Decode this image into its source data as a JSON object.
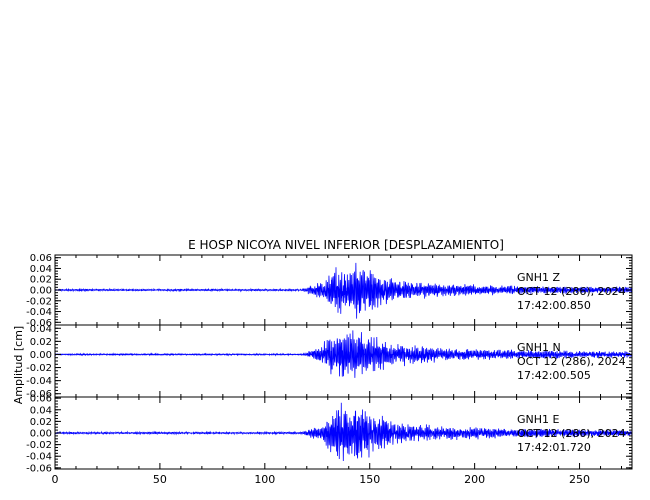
{
  "chart_data": {
    "type": "line",
    "title": "E HOSP NICOYA NIVEL INFERIOR [DESPLAZAMIENTO]",
    "ylabel": "Amplitud  [cm]",
    "xlabel": "",
    "xlim": [
      0,
      275
    ],
    "x_ticks": [
      0,
      50,
      100,
      150,
      200,
      250
    ],
    "colors": {
      "trace": "#0000ff",
      "axis": "#000000"
    },
    "panels": [
      {
        "name": "GNH1 Z",
        "station": "GNH1",
        "component": "Z",
        "date": "OCT 12 (286), 2024",
        "time": "17:42:00.850",
        "ylim": [
          -0.065,
          0.065
        ],
        "y_ticks": [
          0.06,
          0.04,
          0.02,
          0.0,
          -0.02,
          -0.04,
          -0.06
        ],
        "y_tick_labels": [
          "0.06",
          "0.04",
          "0.02",
          "0.00",
          "-0.02",
          "-0.04",
          "-0.06"
        ],
        "envelope": [
          [
            0,
            0.0015
          ],
          [
            118,
            0.0015
          ],
          [
            121,
            0.008
          ],
          [
            127,
            0.015
          ],
          [
            131,
            0.03
          ],
          [
            136,
            0.05
          ],
          [
            140,
            0.04
          ],
          [
            145,
            0.058
          ],
          [
            150,
            0.038
          ],
          [
            155,
            0.028
          ],
          [
            160,
            0.02
          ],
          [
            170,
            0.015
          ],
          [
            185,
            0.012
          ],
          [
            200,
            0.009
          ],
          [
            220,
            0.007
          ],
          [
            275,
            0.005
          ]
        ]
      },
      {
        "name": "GNH1 N",
        "station": "GNH1",
        "component": "N",
        "date": "OCT 12 (286), 2024",
        "time": "17:42:00.505",
        "ylim": [
          -0.065,
          0.045
        ],
        "y_ticks": [
          0.04,
          0.02,
          0.0,
          -0.02,
          -0.04,
          -0.06
        ],
        "y_tick_labels": [
          "0.04",
          "0.02",
          "0.00",
          "-0.02",
          "-0.04",
          "-0.06"
        ],
        "envelope": [
          [
            0,
            0.001
          ],
          [
            118,
            0.001
          ],
          [
            121,
            0.005
          ],
          [
            127,
            0.012
          ],
          [
            131,
            0.028
          ],
          [
            134,
            0.04
          ],
          [
            138,
            0.035
          ],
          [
            142,
            0.03
          ],
          [
            148,
            0.032
          ],
          [
            155,
            0.022
          ],
          [
            165,
            0.016
          ],
          [
            185,
            0.01
          ],
          [
            205,
            0.007
          ],
          [
            275,
            0.004
          ]
        ]
      },
      {
        "name": "GNH1 E",
        "station": "GNH1",
        "component": "E",
        "date": "OCT 12 (286), 2024",
        "time": "17:42:01.720",
        "ylim": [
          -0.062,
          0.062
        ],
        "y_ticks": [
          0.06,
          0.04,
          0.02,
          0.0,
          -0.02,
          -0.04,
          -0.06
        ],
        "y_tick_labels": [
          "0.06",
          "0.04",
          "0.02",
          "0.00",
          "-0.02",
          "-0.04",
          "-0.06"
        ],
        "envelope": [
          [
            0,
            0.0015
          ],
          [
            118,
            0.0015
          ],
          [
            121,
            0.006
          ],
          [
            127,
            0.012
          ],
          [
            131,
            0.03
          ],
          [
            136,
            0.05
          ],
          [
            140,
            0.038
          ],
          [
            145,
            0.05
          ],
          [
            150,
            0.035
          ],
          [
            155,
            0.026
          ],
          [
            165,
            0.016
          ],
          [
            185,
            0.011
          ],
          [
            210,
            0.008
          ],
          [
            275,
            0.005
          ]
        ]
      }
    ]
  }
}
